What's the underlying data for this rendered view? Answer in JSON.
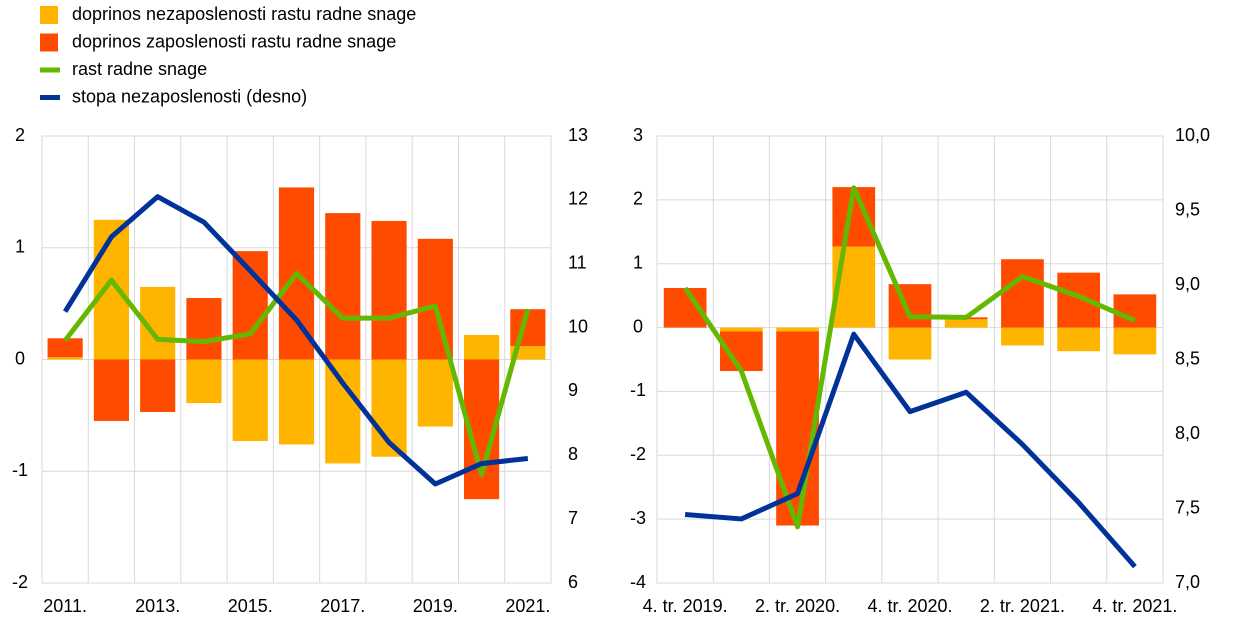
{
  "chart_data": [
    {
      "type": "bar",
      "categories": [
        "2011.",
        null,
        "2013.",
        null,
        "2015.",
        null,
        "2017.",
        null,
        "2019.",
        null,
        "2021."
      ],
      "series": [
        {
          "name": "doprinos nezaposlenosti rastu radne snage",
          "type": "bar",
          "color": "#FFB400",
          "values": [
            0.02,
            1.25,
            0.65,
            -0.39,
            -0.73,
            -0.76,
            -0.93,
            -0.87,
            -0.6,
            0.22,
            0.12
          ]
        },
        {
          "name": "doprinos zaposlenosti rastu radne snage",
          "type": "bar",
          "color": "#FF4B00",
          "values": [
            0.17,
            -0.55,
            -0.47,
            0.55,
            0.97,
            1.54,
            1.31,
            1.24,
            1.08,
            -1.25,
            0.33
          ]
        },
        {
          "name": "rast radne snage",
          "type": "line",
          "color": "#65B800",
          "values": [
            0.17,
            0.71,
            0.18,
            0.16,
            0.23,
            0.77,
            0.37,
            0.37,
            0.48,
            -1.03,
            0.45
          ]
        },
        {
          "name": "stopa nezaposlenosti (desno)",
          "type": "line",
          "axis": "y2",
          "color": "#003299",
          "values": [
            10.25,
            11.42,
            12.05,
            11.65,
            10.89,
            10.12,
            9.13,
            8.2,
            7.55,
            7.87,
            7.95
          ]
        }
      ],
      "ylim": [
        -2,
        2
      ],
      "yticks": [
        -2,
        -1,
        0,
        1,
        2
      ],
      "y2lim": [
        6,
        13
      ],
      "y2ticks": [
        6,
        7,
        8,
        9,
        10,
        11,
        12,
        13
      ],
      "grid": true
    },
    {
      "type": "bar",
      "categories": [
        "4. tr. 2019.",
        null,
        "2. tr. 2020.",
        null,
        "4. tr. 2020.",
        null,
        "2. tr. 2021.",
        null,
        "4. tr. 2021."
      ],
      "series": [
        {
          "type": "bar",
          "values": [
            0.0,
            -0.06,
            -0.06,
            1.27,
            -0.5,
            0.13,
            -0.28,
            -0.37,
            -0.42
          ]
        },
        {
          "type": "bar",
          "values": [
            0.62,
            -0.62,
            -3.04,
            0.93,
            0.68,
            0.03,
            1.07,
            0.86,
            0.52
          ]
        },
        {
          "type": "line",
          "values": [
            0.62,
            -0.68,
            -3.12,
            2.19,
            0.17,
            0.16,
            0.8,
            0.49,
            0.11
          ]
        },
        {
          "type": "line",
          "axis": "y2",
          "values": [
            7.46,
            7.43,
            7.6,
            8.67,
            8.15,
            8.28,
            7.93,
            7.54,
            7.11
          ]
        }
      ],
      "ylim": [
        -4,
        3
      ],
      "yticks": [
        -4,
        -3,
        -2,
        -1,
        0,
        1,
        2,
        3
      ],
      "y2lim": [
        7,
        10
      ],
      "y2ticks": [
        {
          "value": 7,
          "label": "7,0"
        },
        {
          "value": 7.5,
          "label": "7,5"
        },
        {
          "value": 8,
          "label": "8,0"
        },
        {
          "value": 8.5,
          "label": "8,5"
        },
        {
          "value": 9,
          "label": "9,0"
        },
        {
          "value": 9.5,
          "label": "9,5"
        },
        {
          "value": 10,
          "label": "10,0"
        }
      ],
      "grid": true
    }
  ]
}
